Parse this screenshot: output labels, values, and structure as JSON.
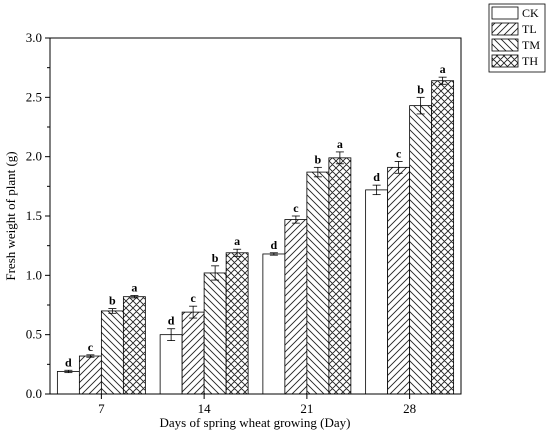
{
  "chart_data": {
    "type": "bar",
    "title": "",
    "xlabel": "Days of spring wheat growing (Day)",
    "ylabel": "Fresh weight of plant (g)",
    "categories": [
      "7",
      "14",
      "21",
      "28"
    ],
    "ylim": [
      0.0,
      3.0
    ],
    "yticks": [
      "0.0",
      "0.5",
      "1.0",
      "1.5",
      "2.0",
      "2.5",
      "3.0"
    ],
    "grid": false,
    "legend_position": "top-right",
    "series": [
      {
        "name": "CK",
        "pattern": "empty",
        "values": [
          0.19,
          0.5,
          1.18,
          1.72
        ],
        "errors": [
          0.01,
          0.05,
          0.01,
          0.04
        ],
        "labels": [
          "d",
          "d",
          "d",
          "d"
        ]
      },
      {
        "name": "TL",
        "pattern": "diagonal-forward",
        "values": [
          0.32,
          0.69,
          1.47,
          1.91
        ],
        "errors": [
          0.01,
          0.05,
          0.03,
          0.05
        ],
        "labels": [
          "c",
          "c",
          "c",
          "c"
        ]
      },
      {
        "name": "TM",
        "pattern": "diagonal-backward",
        "values": [
          0.7,
          1.02,
          1.87,
          2.43
        ],
        "errors": [
          0.02,
          0.06,
          0.04,
          0.07
        ],
        "labels": [
          "b",
          "b",
          "b",
          "b"
        ]
      },
      {
        "name": "TH",
        "pattern": "crosshatch",
        "values": [
          0.82,
          1.19,
          1.99,
          2.64
        ],
        "errors": [
          0.01,
          0.03,
          0.05,
          0.03
        ],
        "labels": [
          "a",
          "a",
          "a",
          "a"
        ]
      }
    ]
  }
}
